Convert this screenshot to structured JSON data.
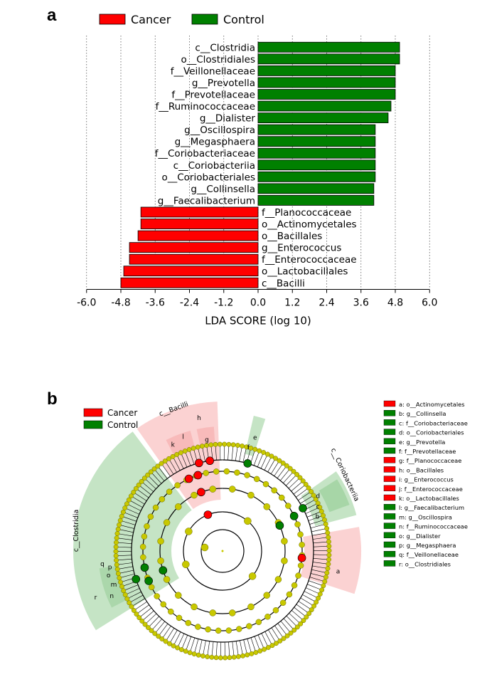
{
  "panel_a_label": "a",
  "panel_b_label": "b",
  "colors": {
    "cancer": "#ff0000",
    "control": "#008000",
    "node": "#c8c800",
    "cancer_light": "#f8b4b4",
    "control_light": "#9fd29f"
  },
  "chart_data": [
    {
      "type": "bar",
      "orientation": "horizontal",
      "legend": [
        "Cancer",
        "Control"
      ],
      "xlabel": "LDA SCORE (log 10)",
      "xlim": [
        -6.0,
        6.0
      ],
      "xticks": [
        "-6.0",
        "-4.8",
        "-3.6",
        "-2.4",
        "-1.2",
        "0.0",
        "1.2",
        "2.4",
        "3.6",
        "4.8",
        "6.0"
      ],
      "tick_values": [
        -6.0,
        -4.8,
        -3.6,
        -2.4,
        -1.2,
        0.0,
        1.2,
        2.4,
        3.6,
        4.8,
        6.0
      ],
      "grid": true,
      "bars": [
        {
          "label": "c__Clostridia",
          "value": 4.95,
          "group": "Control"
        },
        {
          "label": "o__Clostridiales",
          "value": 4.95,
          "group": "Control"
        },
        {
          "label": "f__Veillonellaceae",
          "value": 4.8,
          "group": "Control"
        },
        {
          "label": "g__Prevotella",
          "value": 4.8,
          "group": "Control"
        },
        {
          "label": "f__Prevotellaceae",
          "value": 4.8,
          "group": "Control"
        },
        {
          "label": "f__Ruminococcaceae",
          "value": 4.65,
          "group": "Control"
        },
        {
          "label": "g__Dialister",
          "value": 4.55,
          "group": "Control"
        },
        {
          "label": "g__Oscillospira",
          "value": 4.1,
          "group": "Control"
        },
        {
          "label": "g__Megasphaera",
          "value": 4.1,
          "group": "Control"
        },
        {
          "label": "f__Coriobacteriaceae",
          "value": 4.1,
          "group": "Control"
        },
        {
          "label": "c__Coriobacteriia",
          "value": 4.1,
          "group": "Control"
        },
        {
          "label": "o__Coriobacteriales",
          "value": 4.1,
          "group": "Control"
        },
        {
          "label": "g__Collinsella",
          "value": 4.05,
          "group": "Control"
        },
        {
          "label": "g__Faecalibacterium",
          "value": 4.05,
          "group": "Control"
        },
        {
          "label": "f__Planococcaceae",
          "value": -4.1,
          "group": "Cancer"
        },
        {
          "label": "o__Actinomycetales",
          "value": -4.1,
          "group": "Cancer"
        },
        {
          "label": "o__Bacillales",
          "value": -4.2,
          "group": "Cancer"
        },
        {
          "label": "g__Enterococcus",
          "value": -4.5,
          "group": "Cancer"
        },
        {
          "label": "f__Enterococcaceae",
          "value": -4.5,
          "group": "Cancer"
        },
        {
          "label": "o__Lactobacillales",
          "value": -4.7,
          "group": "Cancer"
        },
        {
          "label": "c__Bacilli",
          "value": -4.8,
          "group": "Cancer"
        }
      ]
    },
    {
      "type": "cladogram",
      "legend": [
        "Cancer",
        "Control"
      ],
      "sector_labels": [
        "c__Bacilli",
        "c__Clostridia",
        "c__Coriobacteriia"
      ],
      "key": [
        {
          "text": "a: o__Actinomycetales",
          "group": "Cancer"
        },
        {
          "text": "b: g__Collinsella",
          "group": "Control"
        },
        {
          "text": "c: f__Coriobacteriaceae",
          "group": "Control"
        },
        {
          "text": "d: o__Coriobacteriales",
          "group": "Control"
        },
        {
          "text": "e: g__Prevotella",
          "group": "Control"
        },
        {
          "text": "f: f__Prevotellaceae",
          "group": "Control"
        },
        {
          "text": "g: f__Planococcaceae",
          "group": "Cancer"
        },
        {
          "text": "h: o__Bacillales",
          "group": "Cancer"
        },
        {
          "text": "i: g__Enterococcus",
          "group": "Cancer"
        },
        {
          "text": "j: f__Enterococcaceae",
          "group": "Cancer"
        },
        {
          "text": "k: o__Lactobacillales",
          "group": "Cancer"
        },
        {
          "text": "l: g__Faecalibacterium",
          "group": "Control"
        },
        {
          "text": "m: g__Oscillospira",
          "group": "Control"
        },
        {
          "text": "n: f__Ruminococcaceae",
          "group": "Control"
        },
        {
          "text": "o: g__Dialister",
          "group": "Control"
        },
        {
          "text": "p: g__Megasphaera",
          "group": "Control"
        },
        {
          "text": "q: f__Veillonellaceae",
          "group": "Control"
        },
        {
          "text": "r: o__Clostridiales",
          "group": "Control"
        }
      ],
      "wedge_letters": [
        "a",
        "b",
        "c",
        "d",
        "e",
        "f",
        "g",
        "h",
        "k",
        "l",
        "m",
        "n",
        "o",
        "p",
        "q",
        "r"
      ]
    }
  ]
}
